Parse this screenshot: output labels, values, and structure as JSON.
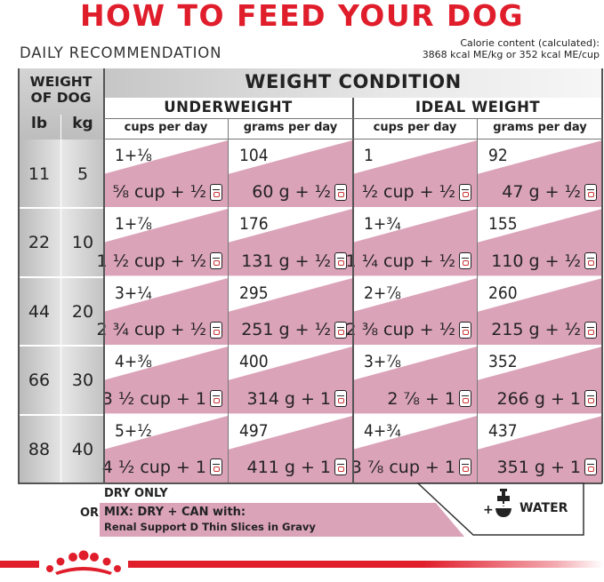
{
  "title": "HOW TO FEED YOUR DOG",
  "daily_recommendation": "DAILY RECOMMENDATION",
  "calorie": {
    "line1": "Calorie content (calculated):",
    "line2": "3868 kcal ME/kg or 352 kcal ME/cup"
  },
  "headers": {
    "weight_of_dog_1": "WEIGHT",
    "weight_of_dog_2": "OF DOG",
    "lb": "lb",
    "kg": "kg",
    "weight_condition": "WEIGHT CONDITION",
    "underweight": "UNDERWEIGHT",
    "ideal_weight": "IDEAL WEIGHT",
    "cups_per_day": "cups per day",
    "grams_per_day": "grams per day"
  },
  "rows": [
    {
      "lb": "11",
      "kg": "5",
      "cells": [
        {
          "top": "1+⅛",
          "bottom": "⅝ cup + ½"
        },
        {
          "top": "104",
          "bottom": "60 g + ½"
        },
        {
          "top": "1",
          "bottom": "½ cup + ½"
        },
        {
          "top": "92",
          "bottom": "47 g + ½"
        }
      ]
    },
    {
      "lb": "22",
      "kg": "10",
      "cells": [
        {
          "top": "1+⅞",
          "bottom": "1 ½ cup + ½"
        },
        {
          "top": "176",
          "bottom": "131 g + ½"
        },
        {
          "top": "1+¾",
          "bottom": "1 ¼ cup + ½"
        },
        {
          "top": "155",
          "bottom": "110 g + ½"
        }
      ]
    },
    {
      "lb": "44",
      "kg": "20",
      "cells": [
        {
          "top": "3+¼",
          "bottom": "2 ¾ cup + ½"
        },
        {
          "top": "295",
          "bottom": "251 g + ½"
        },
        {
          "top": "2+⅞",
          "bottom": "2 ⅜ cup + ½"
        },
        {
          "top": "260",
          "bottom": "215 g + ½"
        }
      ]
    },
    {
      "lb": "66",
      "kg": "30",
      "cells": [
        {
          "top": "4+⅜",
          "bottom": "3 ½ cup + 1"
        },
        {
          "top": "400",
          "bottom": "314 g + 1"
        },
        {
          "top": "3+⅞",
          "bottom": "2 ⅞ + 1"
        },
        {
          "top": "352",
          "bottom": "266 g + 1"
        }
      ]
    },
    {
      "lb": "88",
      "kg": "40",
      "cells": [
        {
          "top": "5+½",
          "bottom": "4 ½ cup + 1"
        },
        {
          "top": "497",
          "bottom": "411 g + 1"
        },
        {
          "top": "4+¾",
          "bottom": "3 ⅞ cup + 1"
        },
        {
          "top": "437",
          "bottom": "351 g + 1"
        }
      ]
    }
  ],
  "legend": {
    "dry_only": "DRY ONLY",
    "or": "OR",
    "mix_line1": "MIX: DRY + CAN with:",
    "mix_line2": "Renal Support D Thin Slices in Gravy",
    "plus": "+",
    "water": "WATER"
  },
  "colors": {
    "brand_red": "#e01d2b",
    "pink": "#dba3b8",
    "gray": "#c4c4c4"
  },
  "icons": [
    "can-icon",
    "water-faucet-bowl-icon",
    "royal-canin-crown-logo"
  ]
}
